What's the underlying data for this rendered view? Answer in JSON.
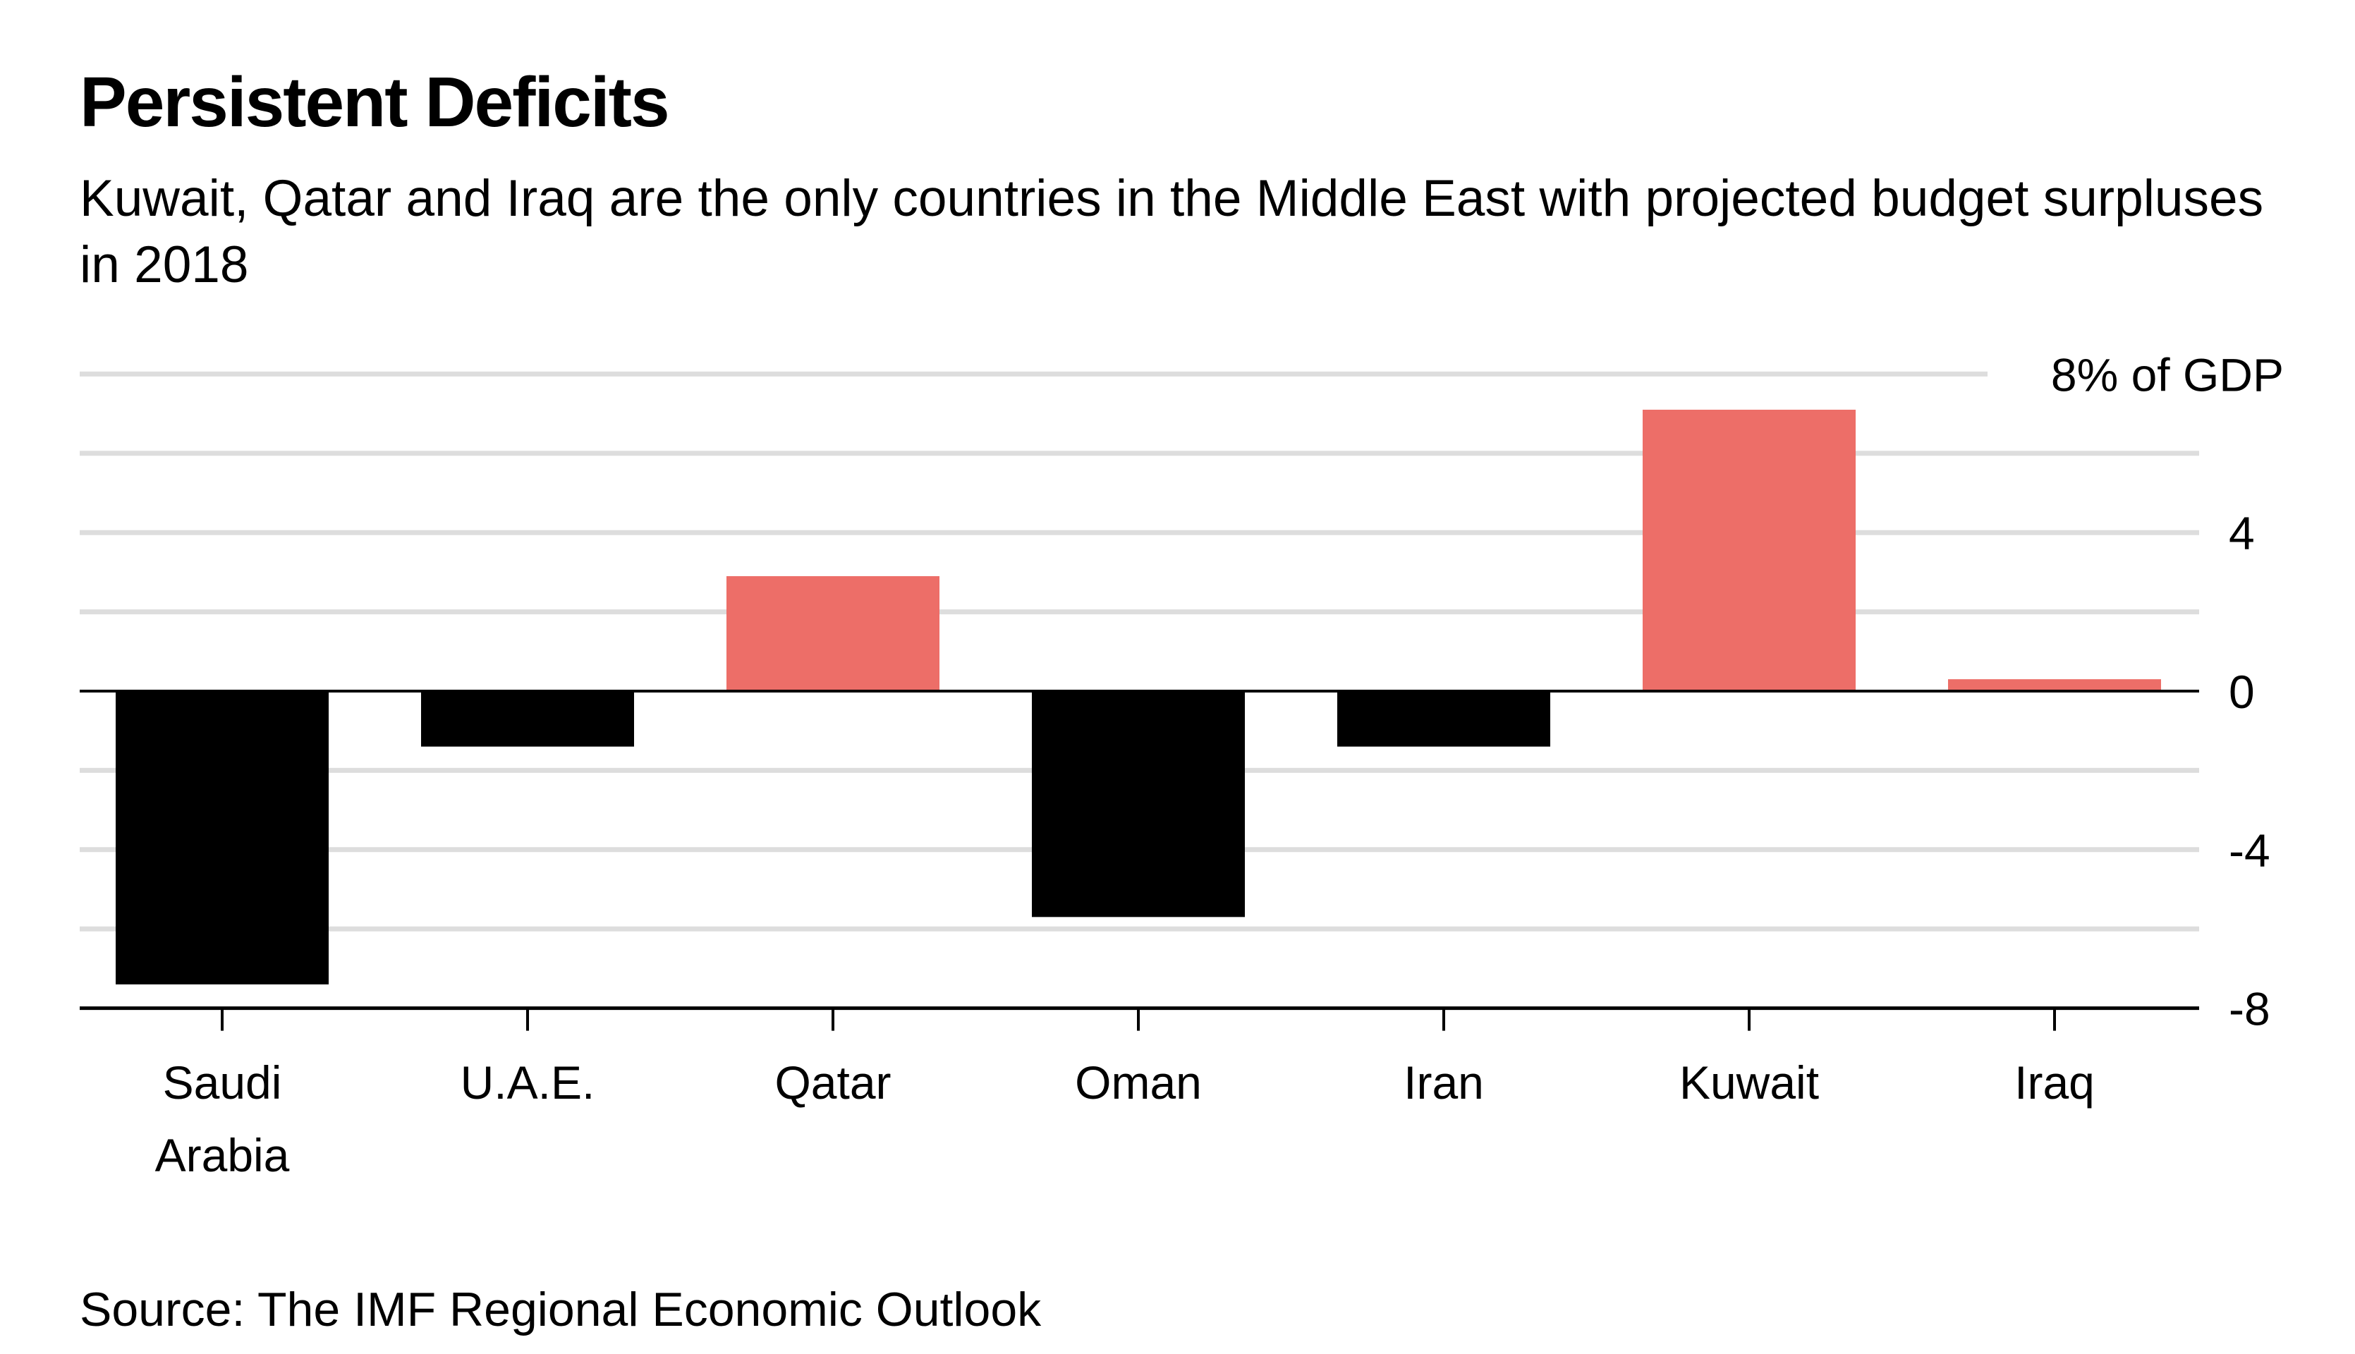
{
  "chart_data": {
    "type": "bar",
    "title": "Persistent Deficits",
    "subtitle": "Kuwait, Qatar and Iraq are the only countries in the Middle East with projected budget surpluses in 2018",
    "categories": [
      [
        "Saudi",
        "Arabia"
      ],
      [
        "U.A.E."
      ],
      [
        "Qatar"
      ],
      [
        "Oman"
      ],
      [
        "Iran"
      ],
      [
        "Kuwait"
      ],
      [
        "Iraq"
      ]
    ],
    "values": [
      -7.4,
      -1.4,
      2.9,
      -5.7,
      -1.4,
      7.1,
      0.3
    ],
    "ylabel": "8% of GDP",
    "ylim": [
      -8,
      8
    ],
    "yticks": [
      {
        "value": 8,
        "label": "8% of GDP"
      },
      {
        "value": 4,
        "label": "4"
      },
      {
        "value": 0,
        "label": "0"
      },
      {
        "value": -4,
        "label": "-4"
      },
      {
        "value": -8,
        "label": "-8"
      }
    ],
    "gridlines": [
      8,
      6,
      4,
      2,
      -2,
      -4,
      -6
    ],
    "grid": true,
    "colors": {
      "positive": "#ed6e68",
      "negative": "#000000",
      "grid": "#dddddd"
    },
    "source": "Source: The IMF Regional Economic Outlook"
  }
}
